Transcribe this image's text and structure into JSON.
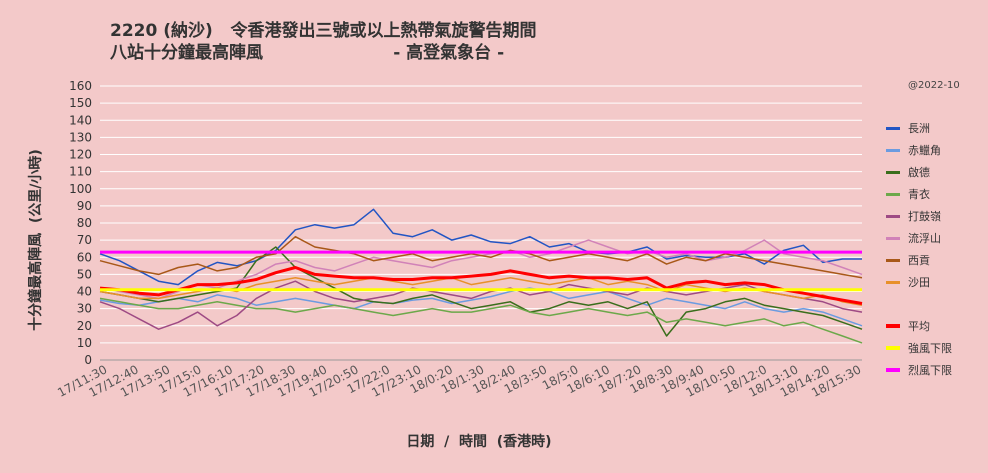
{
  "chart_data": {
    "type": "line",
    "title": "2220 (納沙)   令香港發出三號或以上熱帶氣旋警告期間\n八站十分鐘最高陣風                      - 高登氣象台 -",
    "credit": "@2022-10",
    "xlabel": "日期  /  時間  (香港時)",
    "ylabel": "十分鐘最高陣風  (公里/小時)",
    "ylim": [
      0,
      160
    ],
    "yticks": [
      0,
      10,
      20,
      30,
      40,
      50,
      60,
      70,
      80,
      90,
      100,
      110,
      120,
      130,
      140,
      150,
      160
    ],
    "grid": true,
    "legend_position": "right",
    "xtick_labels": [
      "17/11:30",
      "17/12:40",
      "17/13:50",
      "17/15:0",
      "17/16:10",
      "17/17:20",
      "17/18:30",
      "17/19:40",
      "17/20:50",
      "17/22:0",
      "17/23:10",
      "18/0:20",
      "18/1:30",
      "18/2:40",
      "18/3:50",
      "18/5:0",
      "18/6:10",
      "18/7:20",
      "18/8:30",
      "18/9:40",
      "18/10:50",
      "18/12:0",
      "18/13:10",
      "18/14:20",
      "18/15:30"
    ],
    "series": [
      {
        "name": "長洲",
        "color": "#2255c4",
        "width": 1.5,
        "values": [
          62,
          58,
          52,
          46,
          44,
          52,
          57,
          55,
          58,
          64,
          76,
          79,
          77,
          79,
          88,
          74,
          72,
          76,
          70,
          73,
          69,
          68,
          72,
          66,
          68,
          63,
          62,
          63,
          66,
          59,
          61,
          60,
          60,
          62,
          56,
          64,
          67,
          57,
          59,
          59
        ]
      },
      {
        "name": "赤鱲角",
        "color": "#6b9be0",
        "width": 1.5,
        "values": [
          35,
          33,
          32,
          34,
          36,
          34,
          38,
          36,
          32,
          34,
          36,
          34,
          32,
          30,
          34,
          33,
          35,
          36,
          33,
          35,
          37,
          40,
          42,
          40,
          36,
          38,
          40,
          36,
          32,
          36,
          34,
          32,
          30,
          34,
          30,
          28,
          30,
          28,
          24,
          20
        ]
      },
      {
        "name": "啟德",
        "color": "#3a6e1c",
        "width": 1.5,
        "values": [
          40,
          38,
          36,
          34,
          36,
          38,
          40,
          42,
          58,
          66,
          54,
          48,
          42,
          36,
          34,
          33,
          36,
          38,
          34,
          30,
          32,
          34,
          28,
          30,
          34,
          32,
          34,
          30,
          34,
          14,
          28,
          30,
          34,
          36,
          32,
          30,
          28,
          26,
          22,
          18
        ]
      },
      {
        "name": "青衣",
        "color": "#6ca84a",
        "width": 1.5,
        "values": [
          36,
          34,
          32,
          30,
          30,
          32,
          34,
          32,
          30,
          30,
          28,
          30,
          32,
          30,
          28,
          26,
          28,
          30,
          28,
          28,
          30,
          32,
          28,
          26,
          28,
          30,
          28,
          26,
          28,
          22,
          24,
          22,
          20,
          22,
          24,
          20,
          22,
          18,
          14,
          10
        ]
      },
      {
        "name": "打鼓嶺",
        "color": "#9e4a84",
        "width": 1.5,
        "values": [
          34,
          30,
          24,
          18,
          22,
          28,
          20,
          26,
          36,
          42,
          46,
          40,
          36,
          34,
          36,
          38,
          42,
          40,
          38,
          36,
          40,
          42,
          38,
          40,
          44,
          42,
          40,
          38,
          42,
          40,
          38,
          40,
          42,
          44,
          40,
          38,
          36,
          34,
          30,
          28
        ]
      },
      {
        "name": "流浮山",
        "color": "#d182b8",
        "width": 1.5,
        "values": [
          42,
          40,
          38,
          36,
          40,
          44,
          42,
          46,
          50,
          56,
          58,
          54,
          52,
          56,
          60,
          58,
          56,
          54,
          58,
          60,
          62,
          64,
          60,
          62,
          66,
          70,
          66,
          62,
          64,
          60,
          62,
          58,
          60,
          64,
          70,
          62,
          60,
          58,
          54,
          50
        ]
      },
      {
        "name": "西貢",
        "color": "#a85818",
        "width": 1.5,
        "values": [
          58,
          55,
          52,
          50,
          54,
          56,
          52,
          54,
          60,
          62,
          72,
          66,
          64,
          62,
          58,
          60,
          62,
          58,
          60,
          62,
          60,
          64,
          62,
          58,
          60,
          62,
          60,
          58,
          62,
          56,
          60,
          58,
          62,
          60,
          58,
          56,
          54,
          52,
          50,
          48
        ]
      },
      {
        "name": "沙田",
        "color": "#e8902a",
        "width": 1.5,
        "values": [
          40,
          38,
          36,
          36,
          38,
          40,
          42,
          40,
          44,
          46,
          48,
          46,
          44,
          46,
          48,
          46,
          44,
          46,
          48,
          44,
          46,
          48,
          46,
          44,
          46,
          48,
          44,
          46,
          44,
          40,
          44,
          42,
          40,
          42,
          40,
          38,
          36,
          38,
          34,
          32
        ]
      },
      {
        "name": "平均",
        "color": "#ff0000",
        "width": 3,
        "values": [
          42,
          41,
          39,
          38,
          41,
          44,
          44,
          45,
          47,
          51,
          54,
          50,
          49,
          48,
          48,
          47,
          47,
          48,
          48,
          49,
          50,
          52,
          50,
          48,
          49,
          48,
          48,
          47,
          48,
          42,
          45,
          46,
          44,
          45,
          44,
          41,
          39,
          37,
          35,
          33
        ]
      },
      {
        "name": "強風下限",
        "color": "#ffff00",
        "width": 3,
        "values": [
          41,
          41
        ]
      },
      {
        "name": "烈風下限",
        "color": "#ff00ff",
        "width": 3,
        "values": [
          63,
          63
        ]
      }
    ]
  }
}
